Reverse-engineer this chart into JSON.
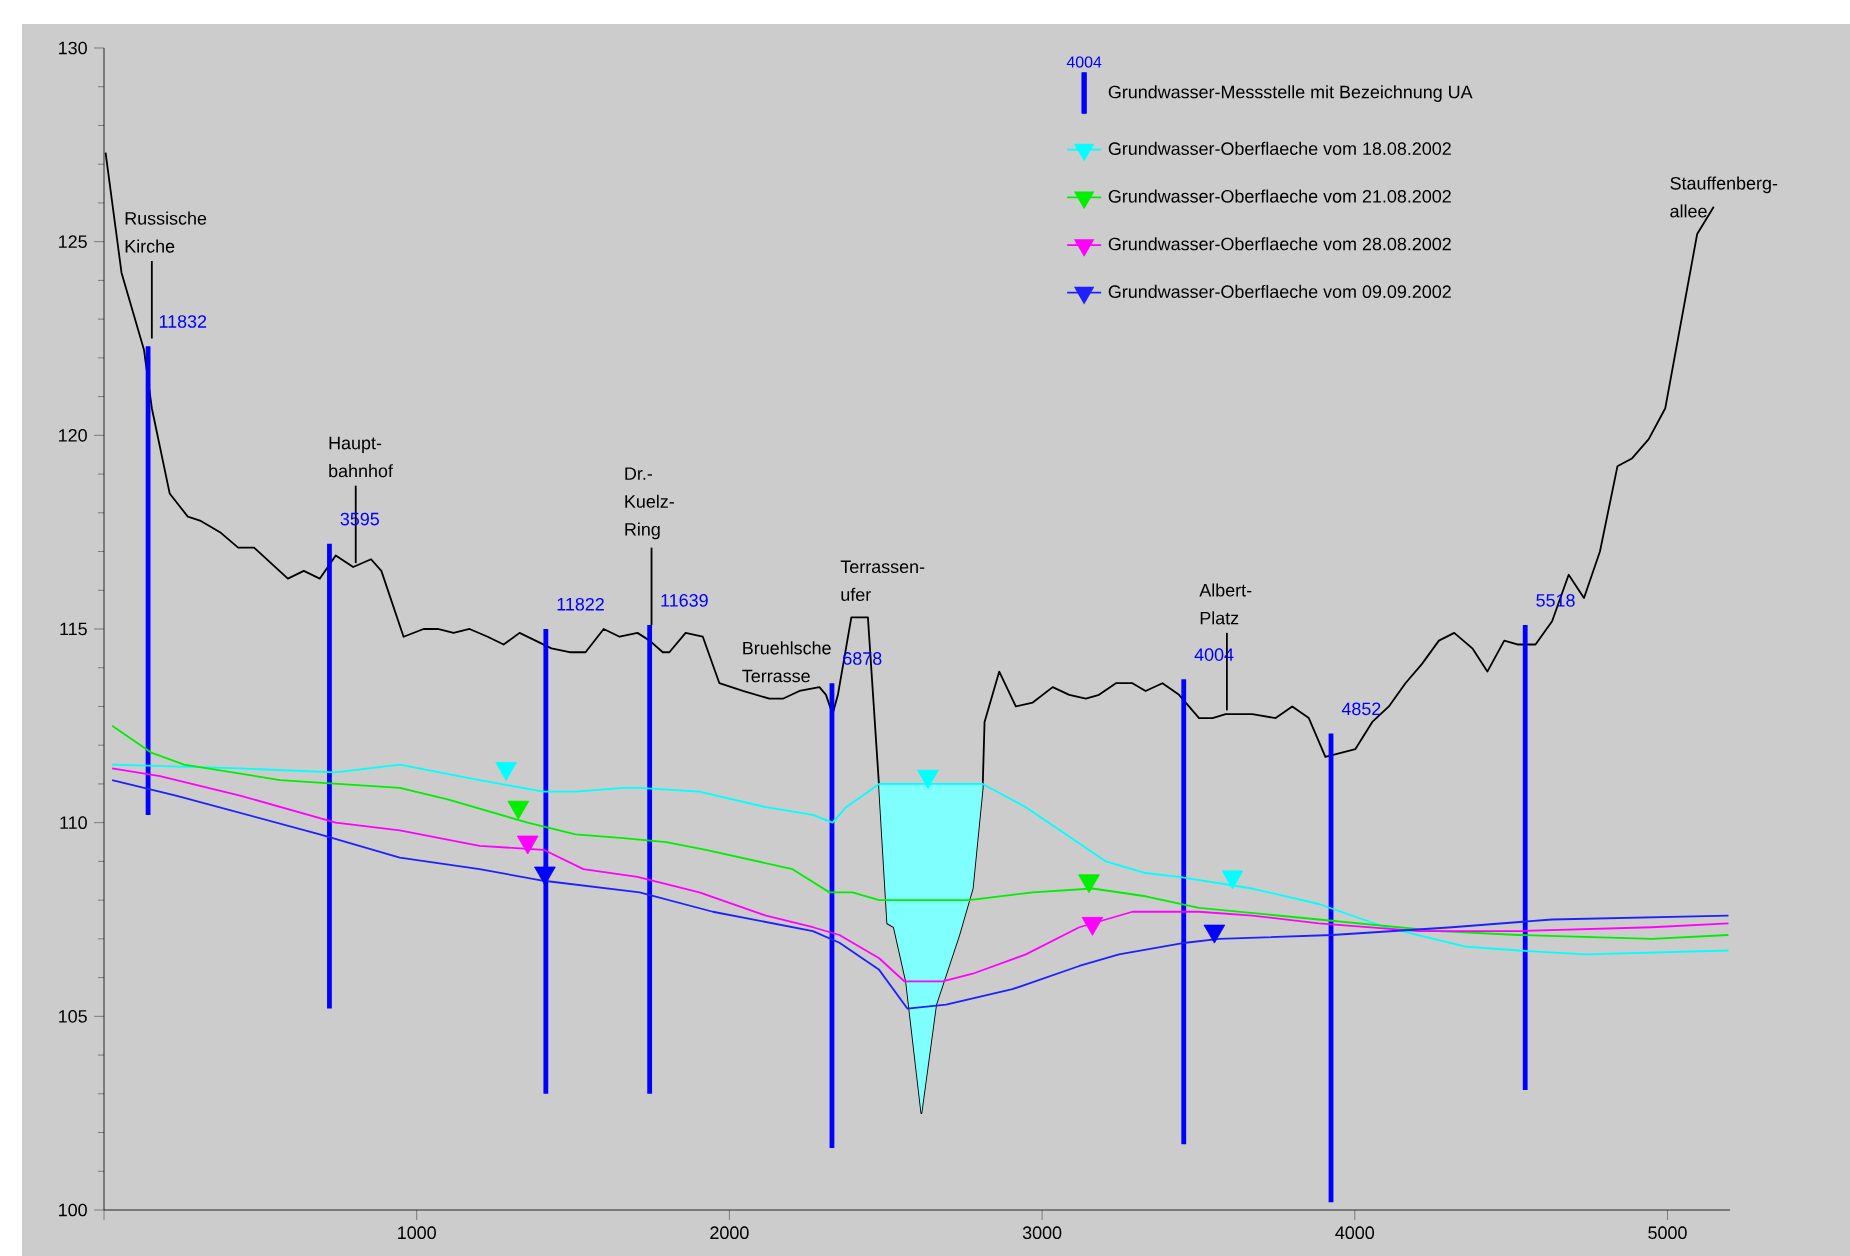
{
  "chart_data": {
    "type": "line",
    "xlim": [
      0,
      5200
    ],
    "ylim": [
      100,
      130
    ],
    "xticks": [
      {
        "value": 0,
        "label": null
      },
      1000,
      2000,
      3000,
      4000,
      5000
    ],
    "yticks": [
      100,
      105,
      110,
      115,
      120,
      125,
      130
    ],
    "legend": "top",
    "series": [
      {
        "color": "#000000",
        "x": [
          5,
          56,
          128,
          153,
          210,
          268,
          307,
          371,
          429,
          480,
          588,
          639,
          690,
          741,
          797,
          854,
          887,
          958,
          1022,
          1067,
          1118,
          1169,
          1227,
          1278,
          1329,
          1380,
          1431,
          1489,
          1540,
          1598,
          1649,
          1706,
          1745,
          1787,
          1808,
          1860,
          1915,
          1968,
          2043,
          2128,
          2171,
          2224,
          2288,
          2309,
          2330,
          2347,
          2390,
          2443,
          2479,
          2505,
          2526,
          2565,
          2614,
          2661,
          2735,
          2778,
          2810,
          2816,
          2863,
          2916,
          2970,
          3034,
          3087,
          3140,
          3182,
          3236,
          3289,
          3331,
          3385,
          3438,
          3502,
          3545,
          3587,
          3672,
          3747,
          3800,
          3853,
          3906,
          4002,
          4056,
          4109,
          4162,
          4215,
          4269,
          4318,
          4376,
          4424,
          4478,
          4520,
          4578,
          4631,
          4684,
          4733,
          4784,
          4840,
          4886,
          4940,
          4993,
          5095,
          5148
        ],
        "values": [
          127.3,
          124.2,
          122.2,
          120.7,
          118.5,
          117.9,
          117.8,
          117.5,
          117.1,
          117.1,
          116.3,
          116.5,
          116.3,
          116.9,
          116.6,
          116.8,
          116.5,
          114.8,
          115.0,
          115.0,
          114.9,
          115.0,
          114.8,
          114.6,
          114.9,
          114.7,
          114.5,
          114.4,
          114.4,
          115.0,
          114.8,
          114.9,
          114.7,
          114.4,
          114.4,
          114.9,
          114.8,
          113.6,
          113.4,
          113.2,
          113.2,
          113.4,
          113.5,
          113.3,
          112.8,
          113.3,
          115.3,
          115.3,
          110.9,
          107.4,
          107.3,
          105.9,
          102.5,
          105.3,
          107.1,
          108.3,
          110.9,
          112.6,
          113.9,
          113.0,
          113.1,
          113.5,
          113.3,
          113.2,
          113.3,
          113.6,
          113.6,
          113.4,
          113.6,
          113.3,
          112.7,
          112.7,
          112.8,
          112.8,
          112.7,
          113.0,
          112.7,
          111.7,
          111.9,
          112.6,
          113.0,
          113.6,
          114.1,
          114.7,
          114.9,
          114.5,
          113.9,
          114.7,
          114.6,
          114.6,
          115.2,
          116.4,
          115.8,
          117.0,
          119.2,
          119.4,
          119.9,
          120.7,
          125.2,
          125.9
        ]
      },
      {
        "type": "bar",
        "name": "Grundwasser-Messstelle mit Bezeichnung UA",
        "color": "#0000ff",
        "x": [
          141,
          721,
          1413,
          1745,
          2328,
          3453,
          3924,
          4545
        ],
        "base": [
          110.2,
          105.2,
          103.0,
          103.0,
          101.6,
          101.7,
          100.2,
          103.1
        ],
        "values": [
          12.1,
          12.0,
          12.0,
          12.1,
          12.0,
          12.0,
          12.1,
          12.0
        ]
      },
      {
        "name": "Grundwasser-Oberflaeche vom 18.08.2002",
        "color": "#00ffff",
        "x": [
          26,
          435,
          741,
          946,
          1201,
          1406,
          1508,
          1661,
          1713,
          1904,
          2117,
          2267,
          2330,
          2373,
          2479,
          2505,
          2526,
          2565,
          2614,
          2661,
          2735,
          2778,
          2810,
          2948,
          3076,
          3204,
          3331,
          3438,
          3672,
          3885,
          4098,
          4354,
          4524,
          4737,
          5195
        ],
        "values": [
          111.5,
          111.4,
          111.3,
          111.5,
          111.1,
          110.8,
          110.8,
          110.9,
          110.9,
          110.8,
          110.4,
          110.2,
          110.0,
          110.4,
          111.0,
          111.0,
          111.0,
          111.0,
          111.0,
          111.0,
          111.0,
          111.0,
          111.0,
          110.4,
          109.7,
          109.0,
          108.7,
          108.6,
          108.3,
          107.9,
          107.3,
          106.8,
          106.7,
          106.6,
          106.7
        ],
        "upper": [
          null,
          null,
          null,
          null,
          null,
          null,
          null,
          null,
          null,
          null,
          null,
          null,
          null,
          null,
          111.0,
          111.0,
          111.0,
          111.0,
          111.0,
          111.0,
          111.0,
          111.0,
          111.0,
          null,
          null,
          null,
          null,
          null,
          null,
          null,
          null,
          null,
          null,
          null,
          null
        ],
        "lower": [
          null,
          null,
          null,
          null,
          null,
          null,
          null,
          null,
          null,
          null,
          null,
          null,
          null,
          null,
          110.9,
          107.4,
          107.3,
          105.9,
          102.5,
          105.3,
          107.1,
          108.3,
          110.9,
          null,
          null,
          null,
          null,
          null,
          null,
          null,
          null,
          null,
          null,
          null,
          null
        ]
      },
      {
        "name": "Grundwasser-Oberflaeche vom 21.08.2002",
        "color": "#00ee00",
        "x": [
          26,
          153,
          256,
          563,
          946,
          1099,
          1355,
          1508,
          1661,
          1798,
          1925,
          2202,
          2320,
          2394,
          2479,
          2767,
          2970,
          3161,
          3331,
          3502,
          3885,
          4269,
          4524,
          4950,
          5195
        ],
        "values": [
          112.5,
          111.8,
          111.5,
          111.1,
          110.9,
          110.6,
          110.0,
          109.7,
          109.6,
          109.5,
          109.3,
          108.8,
          108.2,
          108.2,
          108.0,
          108.0,
          108.2,
          108.3,
          108.1,
          107.8,
          107.5,
          107.2,
          107.1,
          107.0,
          107.1
        ]
      },
      {
        "name": "Grundwasser-Oberflaeche vom 28.08.2002",
        "color": "#ff00ff",
        "x": [
          26,
          179,
          435,
          741,
          946,
          1201,
          1406,
          1533,
          1706,
          1904,
          2117,
          2267,
          2352,
          2479,
          2560,
          2682,
          2778,
          2948,
          3119,
          3289,
          3502,
          3672,
          3885,
          4205,
          4524,
          4950,
          5195
        ],
        "values": [
          111.4,
          111.2,
          110.7,
          110.0,
          109.8,
          109.4,
          109.3,
          108.8,
          108.6,
          108.2,
          107.6,
          107.3,
          107.1,
          106.5,
          105.9,
          105.9,
          106.1,
          106.6,
          107.3,
          107.7,
          107.7,
          107.6,
          107.4,
          107.2,
          107.2,
          107.3,
          107.4
        ]
      },
      {
        "name": "Grundwasser-Oberflaeche vom 09.09.2002",
        "color": "#2020ff",
        "x": [
          26,
          230,
          690,
          946,
          1201,
          1406,
          1713,
          1947,
          2267,
          2352,
          2479,
          2569,
          2693,
          2905,
          3119,
          3246,
          3459,
          3566,
          3928,
          4311,
          4631,
          5195
        ],
        "values": [
          111.1,
          110.7,
          109.7,
          109.1,
          108.8,
          108.5,
          108.2,
          107.7,
          107.2,
          106.9,
          106.2,
          105.2,
          105.3,
          105.7,
          106.3,
          106.6,
          106.9,
          107.0,
          107.1,
          107.3,
          107.5,
          107.6
        ]
      },
      {
        "type": "scatter",
        "marker": "triangle",
        "color": "#00ffff",
        "x": [
          1286,
          2635,
          3609
        ],
        "values": [
          111.4,
          111.2,
          108.6
        ]
      },
      {
        "type": "scatter",
        "marker": "triangle",
        "color": "#00ee00",
        "x": [
          1325,
          3150
        ],
        "values": [
          110.4,
          108.5
        ]
      },
      {
        "type": "scatter",
        "marker": "triangle",
        "color": "#ff00ff",
        "x": [
          1355,
          3161
        ],
        "values": [
          109.5,
          107.4
        ]
      },
      {
        "type": "scatter",
        "marker": "triangle",
        "color": "#0000ff",
        "x": [
          1410,
          3551
        ],
        "values": [
          108.7,
          107.2
        ]
      }
    ],
    "annotations": [
      "4004",
      {
        "text": "Russische Kirche",
        "x": 153,
        "y": 122.5
      },
      {
        "text": "Haupt-bahnhof",
        "x": 805,
        "y": 116.7
      },
      {
        "text": "Dr.-Kuelz-Ring",
        "x": 1751,
        "y": 115.1
      },
      {
        "text": "Bruehlsche Terrasse",
        "x": 2128,
        "y": 113.2
      },
      {
        "text": "Terrassen-ufer",
        "x": 2443,
        "y": 115.3
      },
      {
        "text": "Albert-Platz",
        "x": 3591,
        "y": 112.9
      },
      {
        "text": "Stauffenberg-allee",
        "x": 5095,
        "y": 125.2
      },
      {
        "text": "11832",
        "x": 141,
        "y": 122.3
      },
      {
        "text": "3595",
        "x": 721,
        "y": 117.2
      },
      {
        "text": "11822",
        "x": 1413,
        "y": 115.0
      },
      {
        "text": "11639",
        "x": 1745,
        "y": 115.1
      },
      {
        "text": "6878",
        "x": 2328,
        "y": 113.6
      },
      {
        "text": "4004",
        "x": 3453,
        "y": 113.7
      },
      {
        "text": "4852",
        "x": 3924,
        "y": 112.3
      },
      {
        "text": "5518",
        "x": 4545,
        "y": 115.1
      }
    ]
  }
}
